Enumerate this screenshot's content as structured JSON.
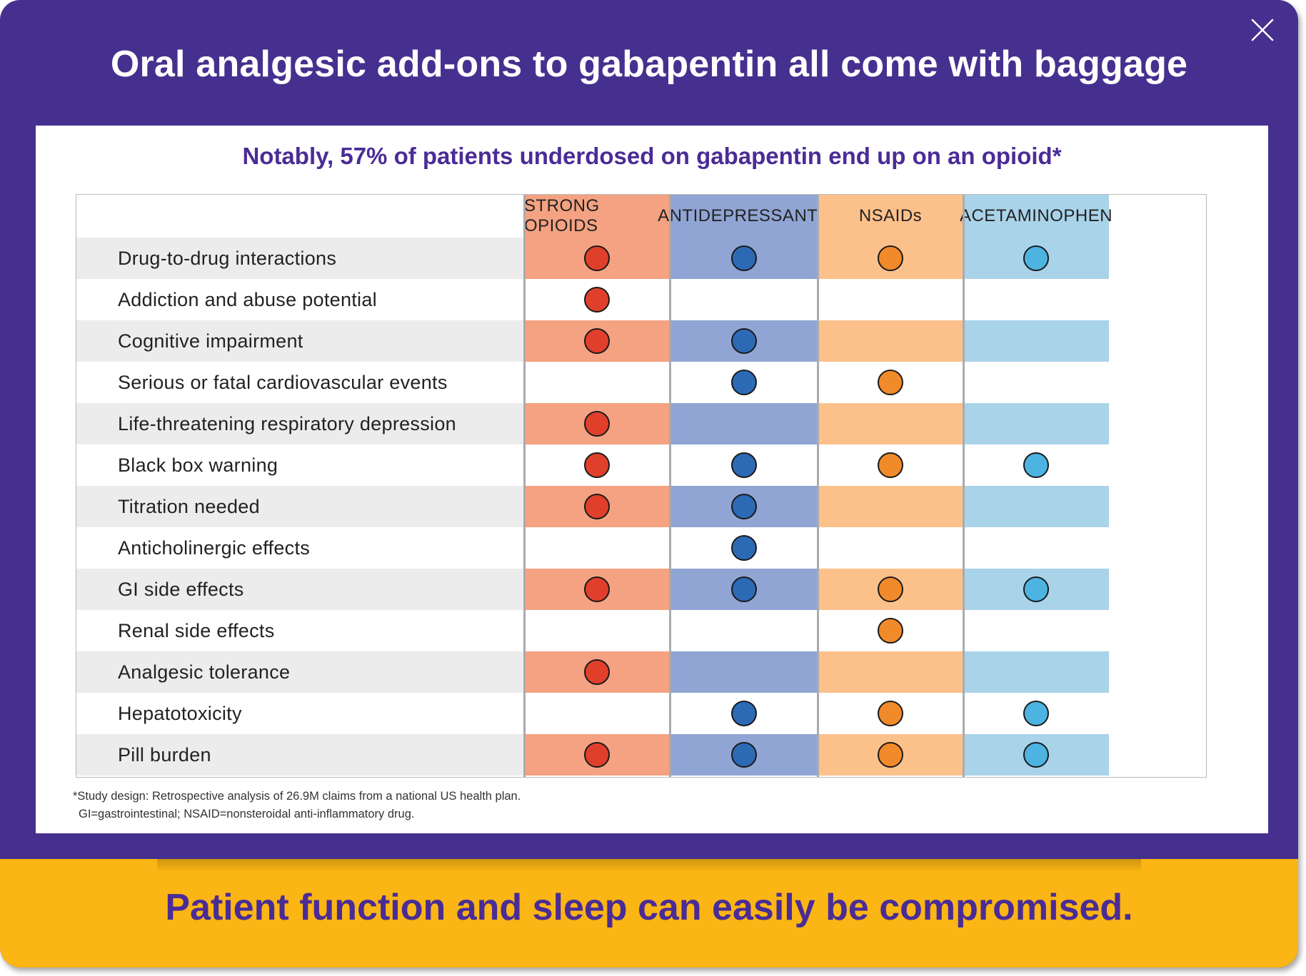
{
  "title": "Oral analgesic add-ons to gabapentin all come with baggage",
  "subtitle": "Notably, 57% of patients underdosed on gabapentin end up on an opioid*",
  "close_icon": "close-icon",
  "columns": [
    {
      "key": "opioids",
      "label": "STRONG OPIOIDS",
      "cell_color": "#f4a281",
      "header_color": "#f4a281",
      "dot_color": "#e0402b"
    },
    {
      "key": "antidepressants",
      "label": "ANTIDEPRESSANTS",
      "cell_color": "#90a5d4",
      "header_color": "#90a5d4",
      "dot_color": "#2d6ab5"
    },
    {
      "key": "nsaids",
      "label": "NSAIDs",
      "cell_color": "#fcc18a",
      "header_color": "#fcc18a",
      "dot_color": "#f18a2a"
    },
    {
      "key": "acetaminophen",
      "label": "ACETAMINOPHEN",
      "cell_color": "#a9d3e9",
      "header_color": "#a9d3e9",
      "dot_color": "#4db4e2"
    }
  ],
  "rows": [
    {
      "label": "Drug-to-drug interactions",
      "marks": [
        true,
        true,
        true,
        true
      ]
    },
    {
      "label": "Addiction and abuse potential",
      "marks": [
        true,
        false,
        false,
        false
      ]
    },
    {
      "label": "Cognitive impairment",
      "marks": [
        true,
        true,
        false,
        false
      ]
    },
    {
      "label": "Serious or fatal cardiovascular events",
      "marks": [
        false,
        true,
        true,
        false
      ]
    },
    {
      "label": "Life-threatening respiratory depression",
      "marks": [
        true,
        false,
        false,
        false
      ]
    },
    {
      "label": "Black box warning",
      "marks": [
        true,
        true,
        true,
        true
      ]
    },
    {
      "label": "Titration needed",
      "marks": [
        true,
        true,
        false,
        false
      ]
    },
    {
      "label": "Anticholinergic effects",
      "marks": [
        false,
        true,
        false,
        false
      ]
    },
    {
      "label": "GI side effects",
      "marks": [
        true,
        true,
        true,
        true
      ]
    },
    {
      "label": "Renal side effects",
      "marks": [
        false,
        false,
        true,
        false
      ]
    },
    {
      "label": "Analgesic tolerance",
      "marks": [
        true,
        false,
        false,
        false
      ]
    },
    {
      "label": "Hepatotoxicity",
      "marks": [
        false,
        true,
        true,
        true
      ]
    },
    {
      "label": "Pill burden",
      "marks": [
        true,
        true,
        true,
        true
      ]
    }
  ],
  "footnote": {
    "line1": "*Study design: Retrospective analysis of 26.9M claims from a national US health plan.",
    "line2": "GI=gastrointestinal; NSAID=nonsteroidal anti-inflammatory drug."
  },
  "banner": "Patient function and sleep can easily be compromised.",
  "colors": {
    "frame": "#46308f",
    "banner": "#fbb514",
    "accent_text": "#4a2c96",
    "row_stripe": "#ececec"
  }
}
